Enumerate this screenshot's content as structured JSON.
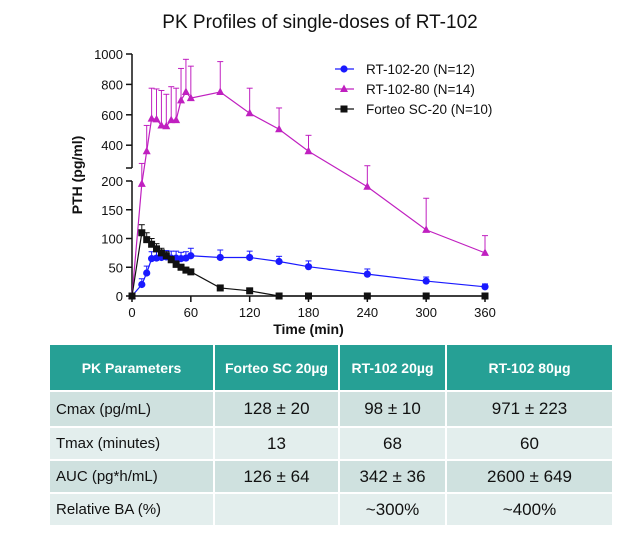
{
  "chart_data": {
    "type": "line",
    "title": "PK Profiles of single-doses of RT-102",
    "xlabel": "Time (min)",
    "ylabel": "PTH (pg/ml)",
    "xlim": [
      0,
      360
    ],
    "xticks": [
      "0",
      "60",
      "120",
      "180",
      "240",
      "300",
      "360"
    ],
    "y_broken_axis": {
      "lower": [
        0,
        200
      ],
      "upper": [
        250,
        1000
      ]
    },
    "yticks_lower": [
      "0",
      "50",
      "100",
      "150",
      "200"
    ],
    "yticks_upper": [
      "400",
      "600",
      "800",
      "1000"
    ],
    "legend_position": "top-right",
    "series": [
      {
        "name": "RT-102-20 (N=12)",
        "color": "#1a1aff",
        "marker": "circle",
        "x": [
          0,
          10,
          15,
          20,
          25,
          30,
          35,
          40,
          45,
          50,
          55,
          60,
          90,
          120,
          150,
          180,
          240,
          300,
          360
        ],
        "y": [
          0,
          20,
          40,
          65,
          66,
          67,
          68,
          66,
          66,
          65,
          66,
          70,
          67,
          67,
          60,
          51,
          38,
          26,
          16
        ],
        "err": [
          0,
          10,
          12,
          12,
          11,
          11,
          11,
          12,
          12,
          11,
          11,
          13,
          13,
          11,
          9,
          10,
          9,
          7,
          5
        ]
      },
      {
        "name": "RT-102-80 (N=14)",
        "color": "#c020c0",
        "marker": "triangle",
        "x": [
          0,
          10,
          15,
          20,
          25,
          30,
          35,
          40,
          45,
          50,
          55,
          60,
          90,
          120,
          150,
          180,
          240,
          300,
          360
        ],
        "y": [
          0,
          195,
          360,
          575,
          570,
          530,
          525,
          565,
          565,
          695,
          750,
          710,
          750,
          610,
          505,
          360,
          190,
          115,
          75
        ],
        "err": [
          0,
          85,
          170,
          200,
          200,
          230,
          210,
          220,
          210,
          210,
          215,
          210,
          200,
          165,
          140,
          105,
          75,
          55,
          30
        ]
      },
      {
        "name": "Forteo SC-20 (N=10)",
        "color": "#111111",
        "marker": "square",
        "x": [
          0,
          10,
          15,
          20,
          25,
          30,
          35,
          40,
          45,
          50,
          55,
          60,
          90,
          120,
          150,
          180,
          240,
          300,
          360
        ],
        "y": [
          0,
          110,
          98,
          90,
          82,
          75,
          70,
          63,
          55,
          50,
          45,
          42,
          14,
          9,
          0,
          0,
          0,
          0,
          0
        ],
        "err": [
          0,
          14,
          12,
          10,
          9,
          8,
          7,
          6,
          6,
          5,
          5,
          4,
          3,
          2,
          0,
          0,
          0,
          0,
          0
        ]
      }
    ]
  },
  "table": {
    "headers": [
      "PK Parameters",
      "Forteo SC 20µg",
      "RT-102 20µg",
      "RT-102 80µg"
    ],
    "rows": [
      [
        "Cmax (pg/mL)",
        "128 ± 20",
        "98 ± 10",
        "971 ± 223"
      ],
      [
        "Tmax (minutes)",
        "13",
        "68",
        "60"
      ],
      [
        "AUC (pg*h/mL)",
        "126 ± 64",
        "342 ± 36",
        "2600 ± 649"
      ],
      [
        "Relative BA (%)",
        "",
        "~300%",
        "~400%"
      ]
    ]
  }
}
